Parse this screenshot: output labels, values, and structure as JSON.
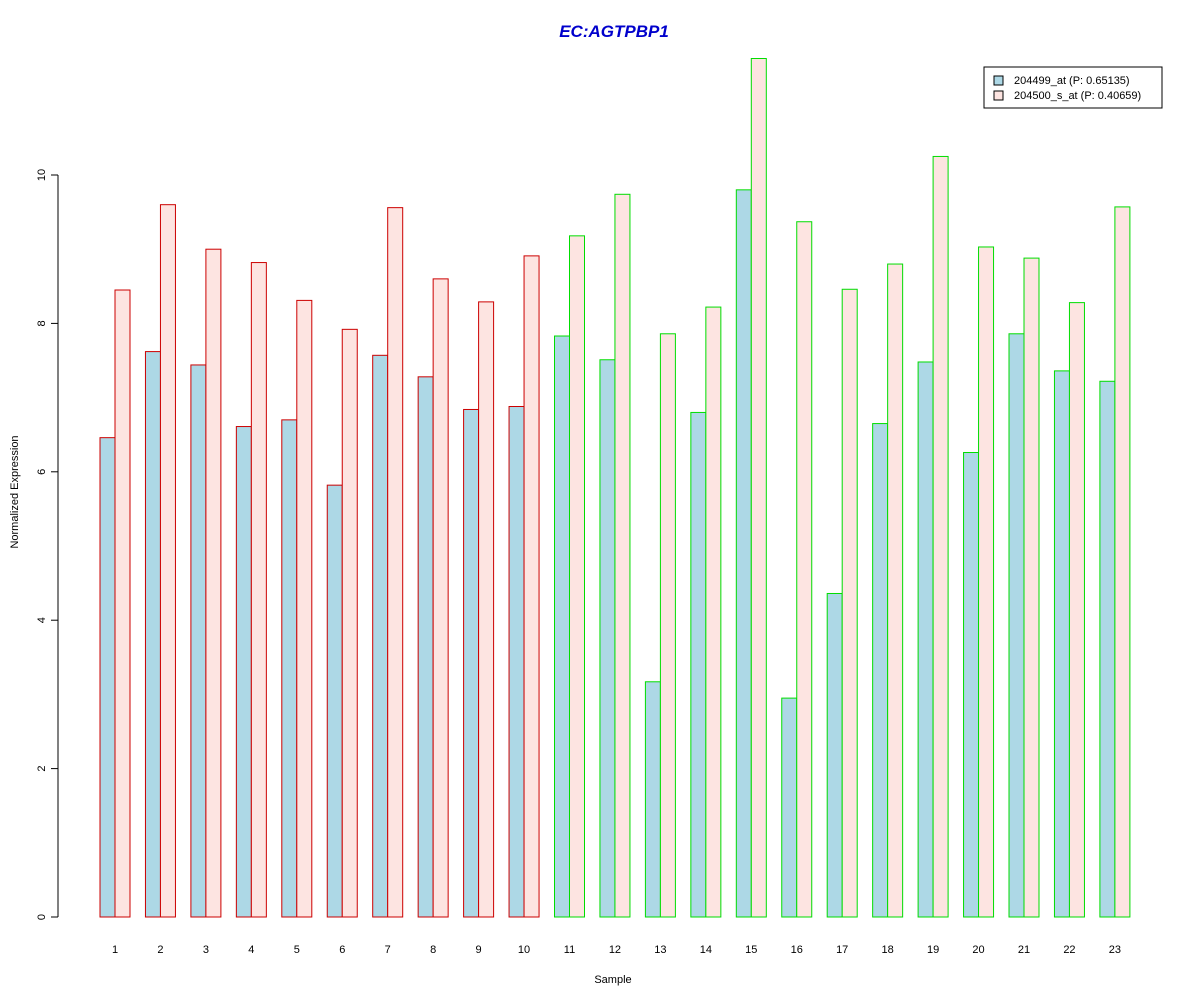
{
  "chart_data": {
    "type": "bar",
    "title": "EC:AGTPBP1",
    "xlabel": "Sample",
    "ylabel": "Normalized Expression",
    "categories": [
      "1",
      "2",
      "3",
      "4",
      "5",
      "6",
      "7",
      "8",
      "9",
      "10",
      "11",
      "12",
      "13",
      "14",
      "15",
      "16",
      "17",
      "18",
      "19",
      "20",
      "21",
      "22",
      "23"
    ],
    "yticks": [
      0,
      2,
      4,
      6,
      8,
      10
    ],
    "ylim": [
      0,
      11.6
    ],
    "series": [
      {
        "name": "204499_at (P: 0.65135)",
        "values": [
          6.46,
          7.62,
          7.44,
          6.61,
          6.7,
          5.82,
          7.57,
          7.28,
          6.84,
          6.88,
          7.83,
          7.51,
          3.17,
          6.8,
          9.8,
          2.95,
          4.36,
          6.65,
          7.48,
          6.26,
          7.86,
          7.36,
          7.22
        ]
      },
      {
        "name": "204500_s_at (P: 0.40659)",
        "values": [
          8.45,
          9.6,
          9.0,
          8.82,
          8.31,
          7.92,
          9.56,
          8.6,
          8.29,
          8.91,
          9.18,
          9.74,
          7.86,
          8.22,
          11.57,
          9.37,
          8.46,
          8.8,
          10.25,
          9.03,
          8.88,
          8.28,
          9.57
        ]
      }
    ],
    "groups": [
      {
        "samples": 10,
        "border_color": "#cc0000"
      },
      {
        "samples": 13,
        "border_color": "#00dd00"
      }
    ],
    "colors": {
      "title": "#0000cc",
      "series_fill": [
        "#add8e6",
        "#fde4e1"
      ]
    },
    "legend_position": "top-right",
    "grid": false
  }
}
